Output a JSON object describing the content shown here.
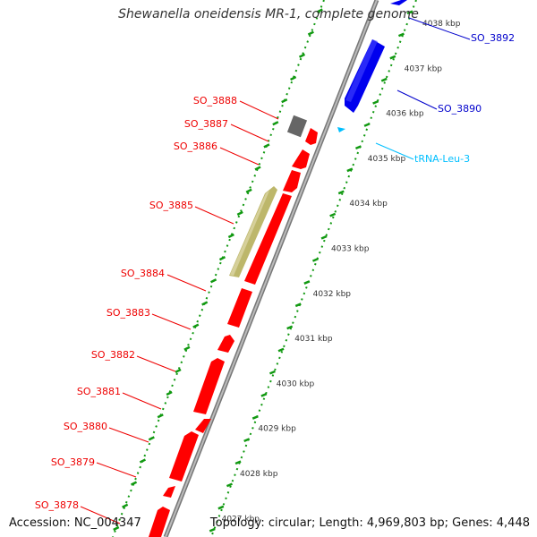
{
  "title": "Shewanella oneidensis MR-1, complete genome",
  "accession": "Accession: NC_004347",
  "topology": "Topology: circular; Length: 4,969,803 bp; Genes: 4,448",
  "colors": {
    "cds_reverse": "#ff0000",
    "cds_forward": "#0000ff",
    "trna": "#00bfff",
    "pseudo": "#bdb76b",
    "other": "#666666",
    "backbone": "#999999",
    "scale": "#008000"
  },
  "scale_ticks": [
    "4038 kbp",
    "4037 kbp",
    "4036 kbp",
    "4035 kbp",
    "4034 kbp",
    "4033 kbp",
    "4032 kbp",
    "4031 kbp",
    "4030 kbp",
    "4029 kbp",
    "4028 kbp",
    "4027 kbp"
  ],
  "forward_labels": [
    {
      "text": "SO_3892",
      "color": "#0000cc"
    },
    {
      "text": "SO_3890",
      "color": "#0000cc"
    },
    {
      "text": "tRNA-Leu-3",
      "color": "#00bfff"
    }
  ],
  "reverse_labels": [
    "SO_3888",
    "SO_3887",
    "SO_3886",
    "SO_3885",
    "SO_3884",
    "SO_3883",
    "SO_3882",
    "SO_3881",
    "SO_3880",
    "SO_3879",
    "SO_3878"
  ]
}
